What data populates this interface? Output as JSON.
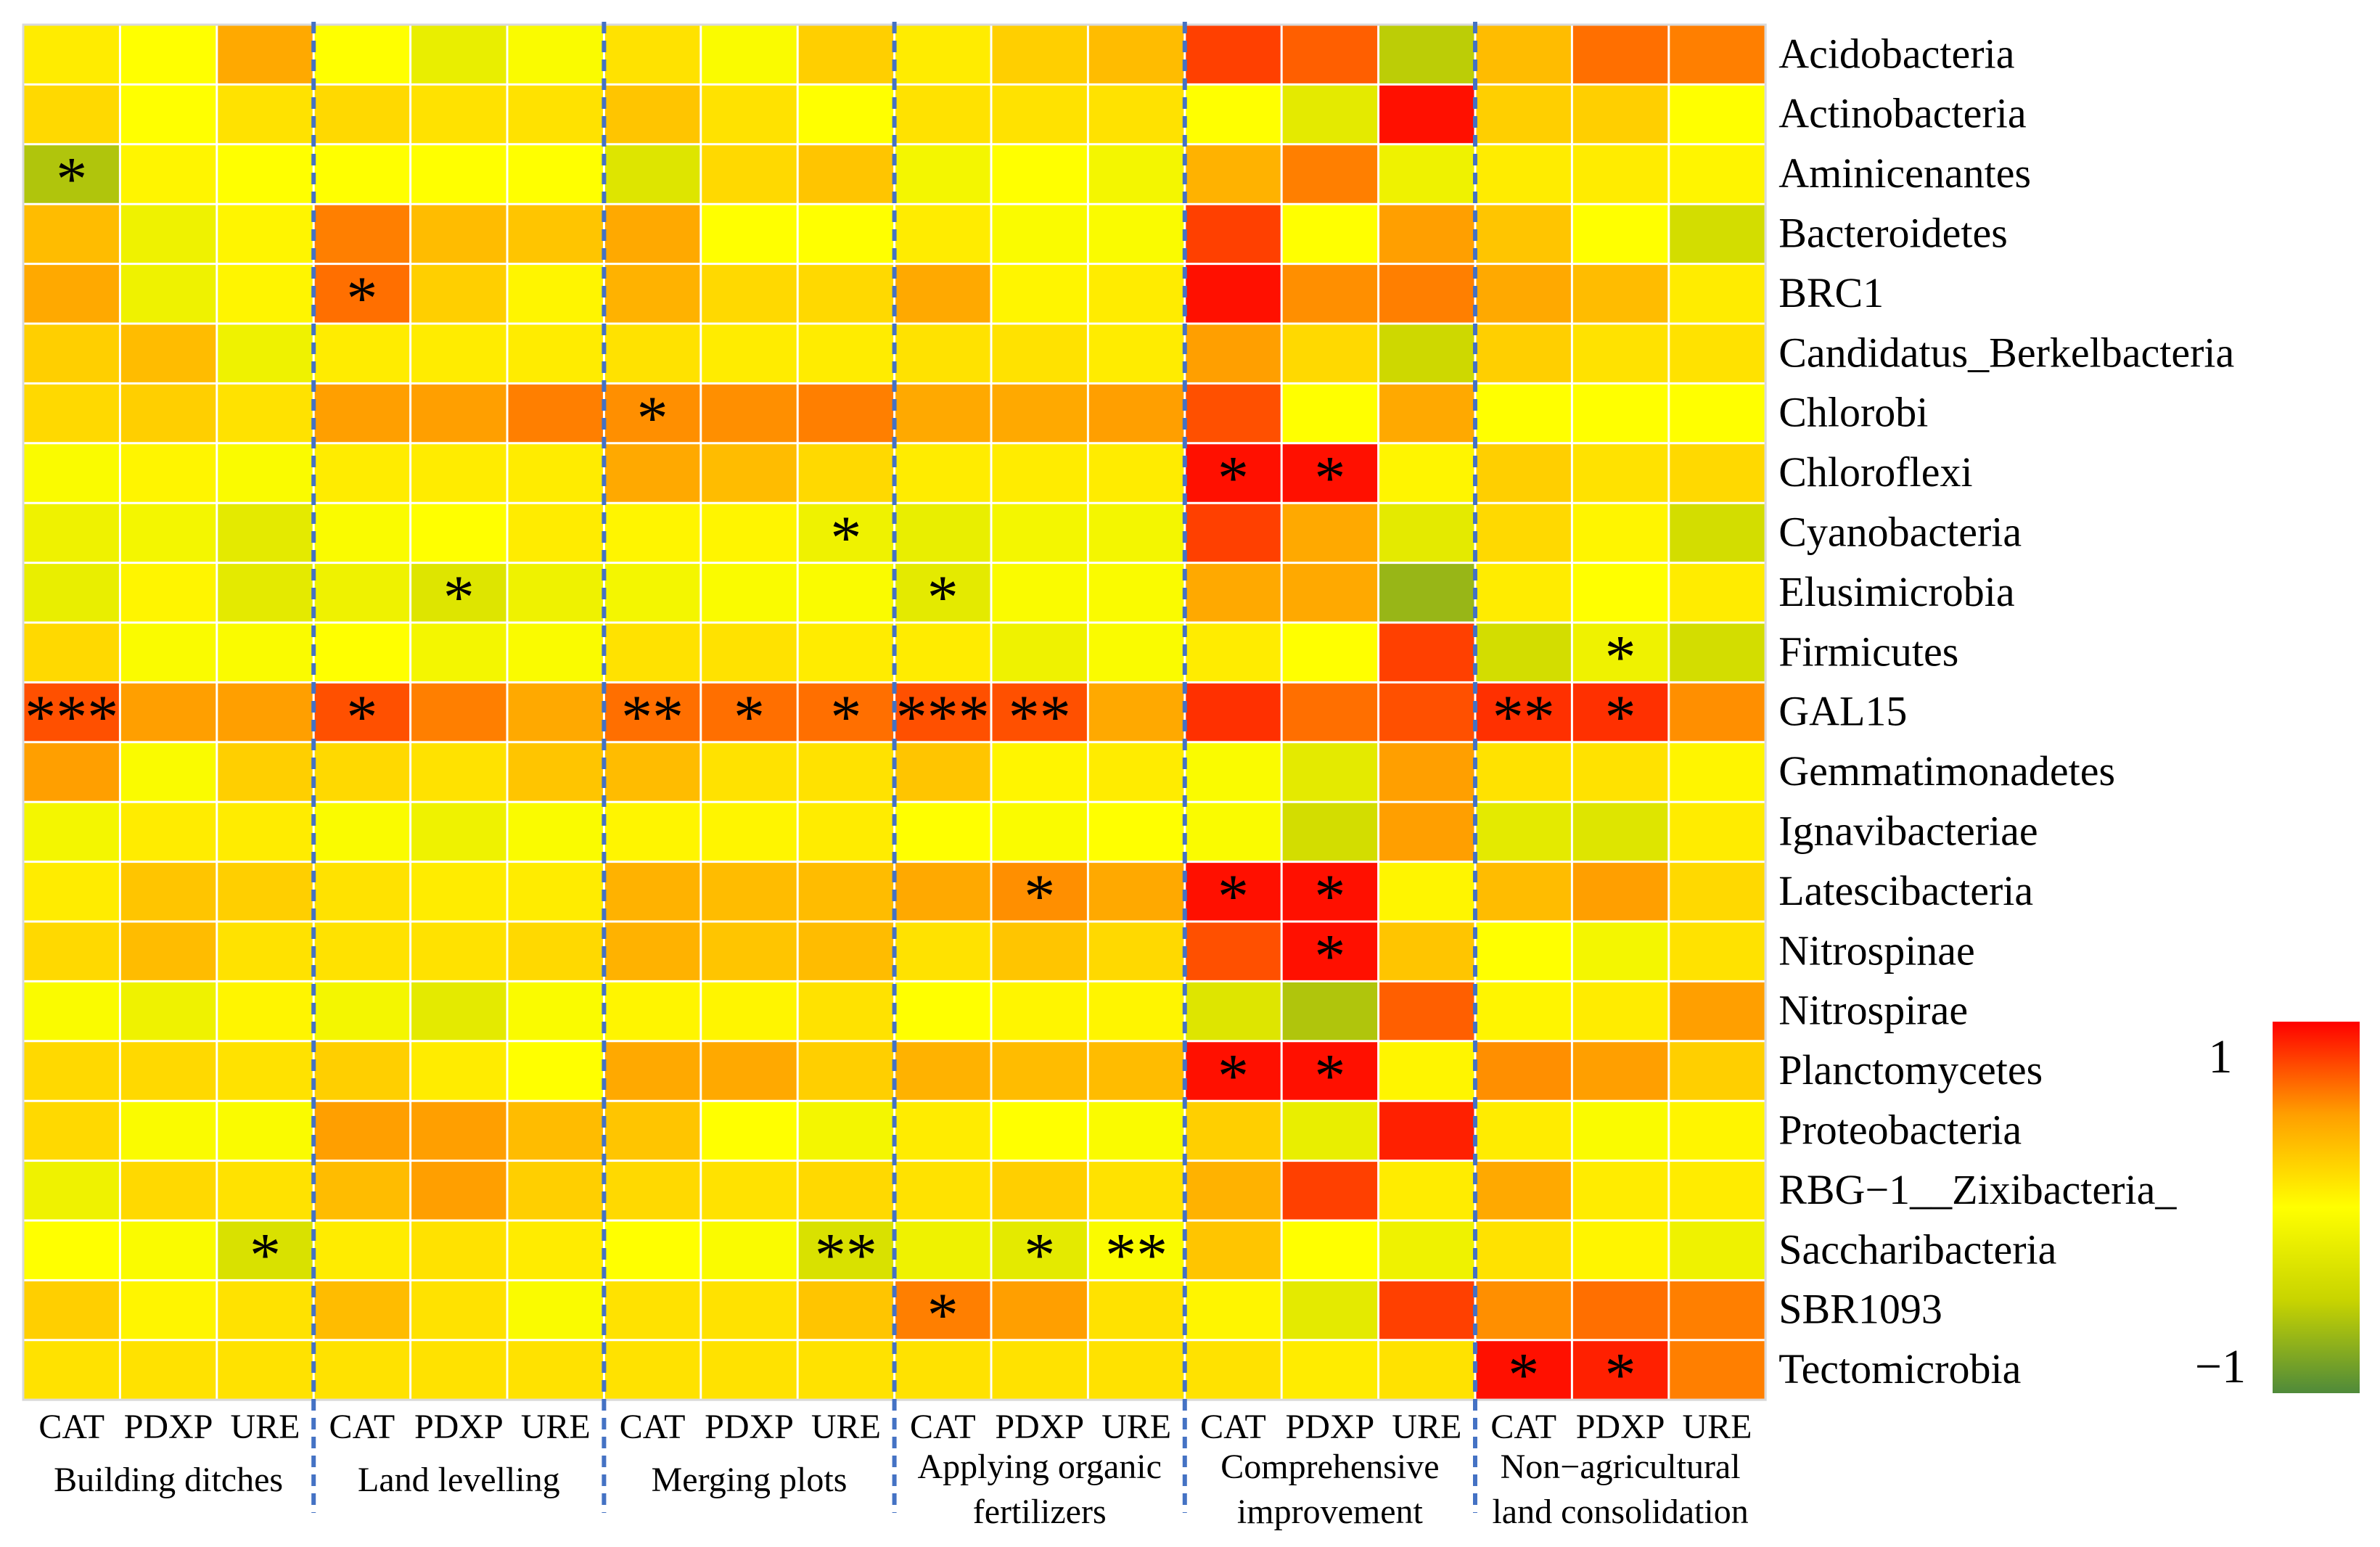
{
  "chart_data": {
    "type": "heatmap",
    "title": "",
    "color_scale": {
      "min": -1,
      "max": 1,
      "min_label": "−1",
      "max_label": "1",
      "colors": [
        "#4f8a3a",
        "#c8d400",
        "#ffff00",
        "#ff9f00",
        "#ff0000"
      ]
    },
    "groups": [
      {
        "name": "Building  ditches",
        "lines": [
          "Building  ditches"
        ]
      },
      {
        "name": "Land levelling",
        "lines": [
          "Land levelling"
        ]
      },
      {
        "name": "Merging plots",
        "lines": [
          "Merging plots"
        ]
      },
      {
        "name": "Applying organic fertilizers",
        "lines": [
          "Applying organic",
          "fertilizers"
        ]
      },
      {
        "name": "Comprehensive improvement",
        "lines": [
          "Comprehensive",
          "improvement"
        ]
      },
      {
        "name": "Non−agricultural land consolidation",
        "lines": [
          "Non−agricultural",
          "land consolidation"
        ]
      }
    ],
    "columns": [
      "CAT",
      "PDXP",
      "URE",
      "CAT",
      "PDXP",
      "URE",
      "CAT",
      "PDXP",
      "URE",
      "CAT",
      "PDXP",
      "URE",
      "CAT",
      "PDXP",
      "URE",
      "CAT",
      "PDXP",
      "URE"
    ],
    "rows": [
      "Acidobacteria",
      "Actinobacteria",
      "Aminicenantes",
      "Bacteroidetes",
      "BRC1",
      "Candidatus_Berkelbacteria",
      "Chlorobi",
      "Chloroflexi",
      "Cyanobacteria",
      "Elusimicrobia",
      "Firmicutes",
      "GAL15",
      "Gemmatimonadetes",
      "Ignavibacteriae",
      "Latescibacteria",
      "Nitrospinae",
      "Nitrospirae",
      "Planctomycetes",
      "Proteobacteria",
      "RBG−1__Zixibacteria_",
      "Saccharibacteria",
      "SBR1093",
      "Tectomicrobia"
    ],
    "values": [
      [
        0.1,
        0.0,
        0.45,
        0.0,
        -0.2,
        -0.05,
        0.15,
        -0.05,
        0.25,
        0.1,
        0.25,
        0.35,
        0.8,
        0.7,
        -0.55,
        0.35,
        0.65,
        0.6
      ],
      [
        0.2,
        0.0,
        0.15,
        0.2,
        0.15,
        0.15,
        0.3,
        0.15,
        0.0,
        0.15,
        0.15,
        0.15,
        0.0,
        -0.25,
        0.95,
        0.25,
        0.25,
        0.0
      ],
      [
        -0.6,
        0.05,
        0.0,
        0.0,
        0.0,
        0.0,
        -0.3,
        0.2,
        0.3,
        -0.1,
        0.0,
        -0.1,
        0.4,
        0.6,
        -0.15,
        0.1,
        0.1,
        0.05
      ],
      [
        0.35,
        -0.15,
        0.05,
        0.6,
        0.35,
        0.3,
        0.45,
        0.0,
        0.0,
        0.1,
        -0.05,
        -0.05,
        0.8,
        0.0,
        0.5,
        0.3,
        0.0,
        -0.4
      ],
      [
        0.45,
        -0.15,
        0.05,
        0.65,
        0.25,
        0.05,
        0.4,
        0.2,
        0.2,
        0.45,
        0.05,
        0.1,
        0.95,
        0.55,
        0.6,
        0.45,
        0.35,
        0.1
      ],
      [
        0.25,
        0.35,
        -0.15,
        0.1,
        0.1,
        0.1,
        0.15,
        0.1,
        0.1,
        0.15,
        0.15,
        0.1,
        0.5,
        0.2,
        -0.45,
        0.25,
        0.15,
        0.15
      ],
      [
        0.2,
        0.25,
        0.15,
        0.5,
        0.5,
        0.6,
        0.55,
        0.55,
        0.6,
        0.45,
        0.45,
        0.5,
        0.75,
        0.0,
        0.45,
        0.0,
        0.0,
        0.0
      ],
      [
        -0.05,
        0.05,
        -0.05,
        0.1,
        0.1,
        0.1,
        0.45,
        0.35,
        0.2,
        0.1,
        0.1,
        0.1,
        0.95,
        0.95,
        0.05,
        0.25,
        0.15,
        0.2
      ],
      [
        -0.15,
        -0.1,
        -0.25,
        -0.05,
        0.0,
        0.1,
        0.05,
        0.05,
        -0.15,
        -0.2,
        -0.1,
        -0.1,
        0.8,
        0.45,
        -0.25,
        0.2,
        0.05,
        -0.4
      ],
      [
        -0.2,
        0.05,
        -0.25,
        -0.15,
        -0.3,
        -0.15,
        -0.1,
        -0.05,
        -0.05,
        -0.25,
        -0.05,
        -0.05,
        0.45,
        0.45,
        -0.7,
        0.1,
        0.0,
        0.1
      ],
      [
        0.2,
        -0.05,
        -0.05,
        0.0,
        -0.1,
        -0.05,
        0.15,
        0.15,
        0.1,
        0.1,
        -0.15,
        -0.05,
        0.1,
        0.0,
        0.8,
        -0.4,
        -0.15,
        -0.4
      ],
      [
        0.75,
        0.5,
        0.5,
        0.75,
        0.6,
        0.45,
        0.65,
        0.65,
        0.65,
        0.75,
        0.75,
        0.45,
        0.85,
        0.65,
        0.75,
        0.85,
        0.85,
        0.55
      ],
      [
        0.5,
        -0.05,
        0.25,
        0.2,
        0.15,
        0.3,
        0.35,
        0.15,
        0.15,
        0.3,
        0.05,
        0.1,
        -0.05,
        -0.25,
        0.5,
        0.15,
        0.15,
        0.05
      ],
      [
        -0.1,
        0.1,
        0.1,
        -0.05,
        -0.15,
        -0.05,
        0.05,
        0.05,
        0.1,
        0.0,
        -0.05,
        0.0,
        -0.05,
        -0.4,
        0.5,
        -0.25,
        -0.3,
        0.1
      ],
      [
        0.1,
        0.3,
        0.25,
        0.15,
        0.1,
        0.1,
        0.4,
        0.35,
        0.35,
        0.45,
        0.55,
        0.45,
        0.95,
        0.95,
        0.05,
        0.35,
        0.5,
        0.2
      ],
      [
        0.2,
        0.35,
        0.15,
        0.15,
        0.15,
        0.2,
        0.4,
        0.3,
        0.35,
        0.15,
        0.3,
        0.2,
        0.75,
        0.95,
        0.3,
        0.0,
        -0.1,
        0.15
      ],
      [
        -0.05,
        -0.15,
        0.05,
        -0.1,
        -0.25,
        -0.05,
        0.05,
        0.05,
        0.15,
        0.0,
        0.05,
        0.05,
        -0.3,
        -0.6,
        0.7,
        0.05,
        0.1,
        0.5
      ],
      [
        0.2,
        0.2,
        0.15,
        0.25,
        0.1,
        0.0,
        0.45,
        0.45,
        0.25,
        0.4,
        0.35,
        0.35,
        0.95,
        0.95,
        0.05,
        0.55,
        0.5,
        0.25
      ],
      [
        0.2,
        -0.05,
        -0.05,
        0.5,
        0.5,
        0.35,
        0.3,
        0.0,
        -0.1,
        0.1,
        0.0,
        -0.05,
        0.25,
        -0.2,
        0.9,
        0.1,
        -0.05,
        0.05
      ],
      [
        -0.15,
        0.2,
        0.15,
        0.35,
        0.5,
        0.25,
        0.2,
        0.15,
        0.2,
        0.15,
        0.25,
        0.15,
        0.4,
        0.8,
        0.1,
        0.45,
        0.1,
        0.1
      ],
      [
        0.0,
        -0.05,
        -0.35,
        0.1,
        0.15,
        0.1,
        0.0,
        -0.05,
        -0.35,
        -0.15,
        -0.25,
        -0.05,
        0.3,
        0.0,
        -0.15,
        0.15,
        0.05,
        -0.15
      ],
      [
        0.25,
        0.05,
        0.15,
        0.35,
        0.15,
        -0.05,
        0.15,
        0.15,
        0.3,
        0.6,
        0.5,
        0.15,
        0.05,
        -0.25,
        0.8,
        0.55,
        0.65,
        0.6
      ],
      [
        0.15,
        0.15,
        0.15,
        0.15,
        0.15,
        0.15,
        0.15,
        0.15,
        0.15,
        0.15,
        0.15,
        0.15,
        0.15,
        0.1,
        0.15,
        0.95,
        0.9,
        0.6
      ]
    ],
    "significance": [
      {
        "row": 2,
        "col": 0,
        "mark": "*"
      },
      {
        "row": 4,
        "col": 3,
        "mark": "*"
      },
      {
        "row": 6,
        "col": 6,
        "mark": "*"
      },
      {
        "row": 7,
        "col": 12,
        "mark": "*"
      },
      {
        "row": 7,
        "col": 13,
        "mark": "*"
      },
      {
        "row": 8,
        "col": 8,
        "mark": "*"
      },
      {
        "row": 9,
        "col": 4,
        "mark": "*"
      },
      {
        "row": 9,
        "col": 9,
        "mark": "*"
      },
      {
        "row": 10,
        "col": 16,
        "mark": "*"
      },
      {
        "row": 11,
        "col": 0,
        "mark": "***"
      },
      {
        "row": 11,
        "col": 3,
        "mark": "*"
      },
      {
        "row": 11,
        "col": 6,
        "mark": "**"
      },
      {
        "row": 11,
        "col": 7,
        "mark": "*"
      },
      {
        "row": 11,
        "col": 8,
        "mark": "*"
      },
      {
        "row": 11,
        "col": 9,
        "mark": "***"
      },
      {
        "row": 11,
        "col": 10,
        "mark": "**"
      },
      {
        "row": 11,
        "col": 15,
        "mark": "**"
      },
      {
        "row": 11,
        "col": 16,
        "mark": "*"
      },
      {
        "row": 14,
        "col": 10,
        "mark": "*"
      },
      {
        "row": 14,
        "col": 12,
        "mark": "*"
      },
      {
        "row": 14,
        "col": 13,
        "mark": "*"
      },
      {
        "row": 15,
        "col": 13,
        "mark": "*"
      },
      {
        "row": 17,
        "col": 12,
        "mark": "*"
      },
      {
        "row": 17,
        "col": 13,
        "mark": "*"
      },
      {
        "row": 20,
        "col": 2,
        "mark": "*"
      },
      {
        "row": 20,
        "col": 8,
        "mark": "**"
      },
      {
        "row": 20,
        "col": 10,
        "mark": "*"
      },
      {
        "row": 20,
        "col": 11,
        "mark": "**"
      },
      {
        "row": 21,
        "col": 9,
        "mark": "*"
      },
      {
        "row": 22,
        "col": 15,
        "mark": "*"
      },
      {
        "row": 22,
        "col": 16,
        "mark": "*"
      }
    ]
  }
}
